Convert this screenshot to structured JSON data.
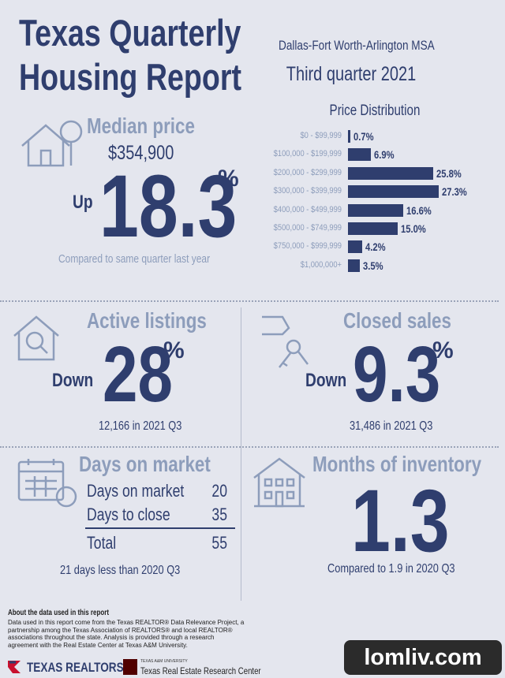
{
  "header": {
    "title": "Texas Quarterly Housing Report",
    "region": "Dallas-Fort Worth-Arlington MSA",
    "period": "Third quarter 2021"
  },
  "median_price": {
    "label": "Median price",
    "price": "$354,900",
    "direction": "Up",
    "change": 18.3,
    "unit": "%",
    "note": "Compared to same quarter last year"
  },
  "price_distribution": {
    "title": "Price Distribution",
    "categories": [
      "$0 - $99,999",
      "$100,000 - $199,999",
      "$200,000 - $299,999",
      "$300,000 - $399,999",
      "$400,000 - $499,999",
      "$500,000 - $749,999",
      "$750,000 - $999,999",
      "$1,000,000+"
    ],
    "values": [
      0.7,
      6.9,
      25.8,
      27.3,
      16.6,
      15.0,
      4.2,
      3.5
    ],
    "value_labels": [
      "0.7%",
      "6.9%",
      "25.8%",
      "27.3%",
      "16.6%",
      "15.0%",
      "4.2%",
      "3.5%"
    ],
    "color": "#2f3e6e"
  },
  "active_listings": {
    "label": "Active listings",
    "direction": "Down",
    "change": 28,
    "unit": "%",
    "note": "12,166 in 2021 Q3"
  },
  "closed_sales": {
    "label": "Closed sales",
    "direction": "Down",
    "change": 9.3,
    "unit": "%",
    "note": "31,486 in 2021 Q3"
  },
  "days_on_market": {
    "label": "Days on market",
    "rows": [
      [
        "Days on market",
        20
      ],
      [
        "Days to close",
        35
      ]
    ],
    "total": [
      "Total",
      55
    ],
    "note": "21 days less than 2020 Q3"
  },
  "months_inventory": {
    "label": "Months of inventory",
    "value": 1.3,
    "note": "Compared to 1.9 in 2020 Q3"
  },
  "footer": {
    "heading": "About the data used in this report",
    "text": "Data used in this report come from the Texas REALTOR® Data Relevance Project, a partnership among the Texas Association of REALTORS® and local REALTOR® associations throughout the state. Analysis is provided through a research agreement with the Real Estate Center at Texas A&M University.",
    "logo_left": "TEXAS REALTORS",
    "logo_small": "TEXAS A&M UNIVERSITY",
    "logo_right": "Texas Real Estate Research Center"
  },
  "watermark": "lomliv.com"
}
